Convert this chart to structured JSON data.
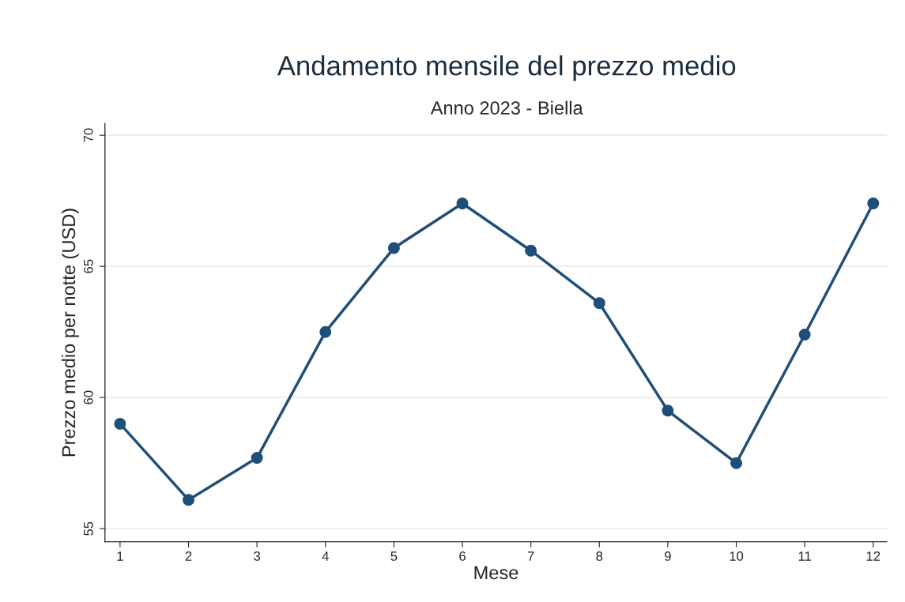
{
  "chart_data": {
    "type": "line",
    "title": "Andamento mensile del prezzo medio",
    "subtitle": "Anno 2023 - Biella",
    "xlabel": "Mese",
    "ylabel": "Prezzo medio per notte (USD)",
    "x": [
      1,
      2,
      3,
      4,
      5,
      6,
      7,
      8,
      9,
      10,
      11,
      12
    ],
    "series": [
      {
        "color": "#1f4e79",
        "values": [
          59.0,
          56.1,
          57.7,
          62.5,
          65.7,
          67.4,
          65.6,
          63.6,
          59.5,
          57.5,
          62.4,
          67.4
        ]
      }
    ],
    "xlim": [
      0.78,
      12.2
    ],
    "xticks": [
      1,
      2,
      3,
      4,
      5,
      6,
      7,
      8,
      9,
      10,
      11,
      12
    ],
    "ylim": [
      54.5,
      70.45
    ],
    "yticks": [
      55,
      60,
      65,
      70
    ],
    "grid": "y",
    "marker": "circle",
    "line_style": "solid"
  }
}
